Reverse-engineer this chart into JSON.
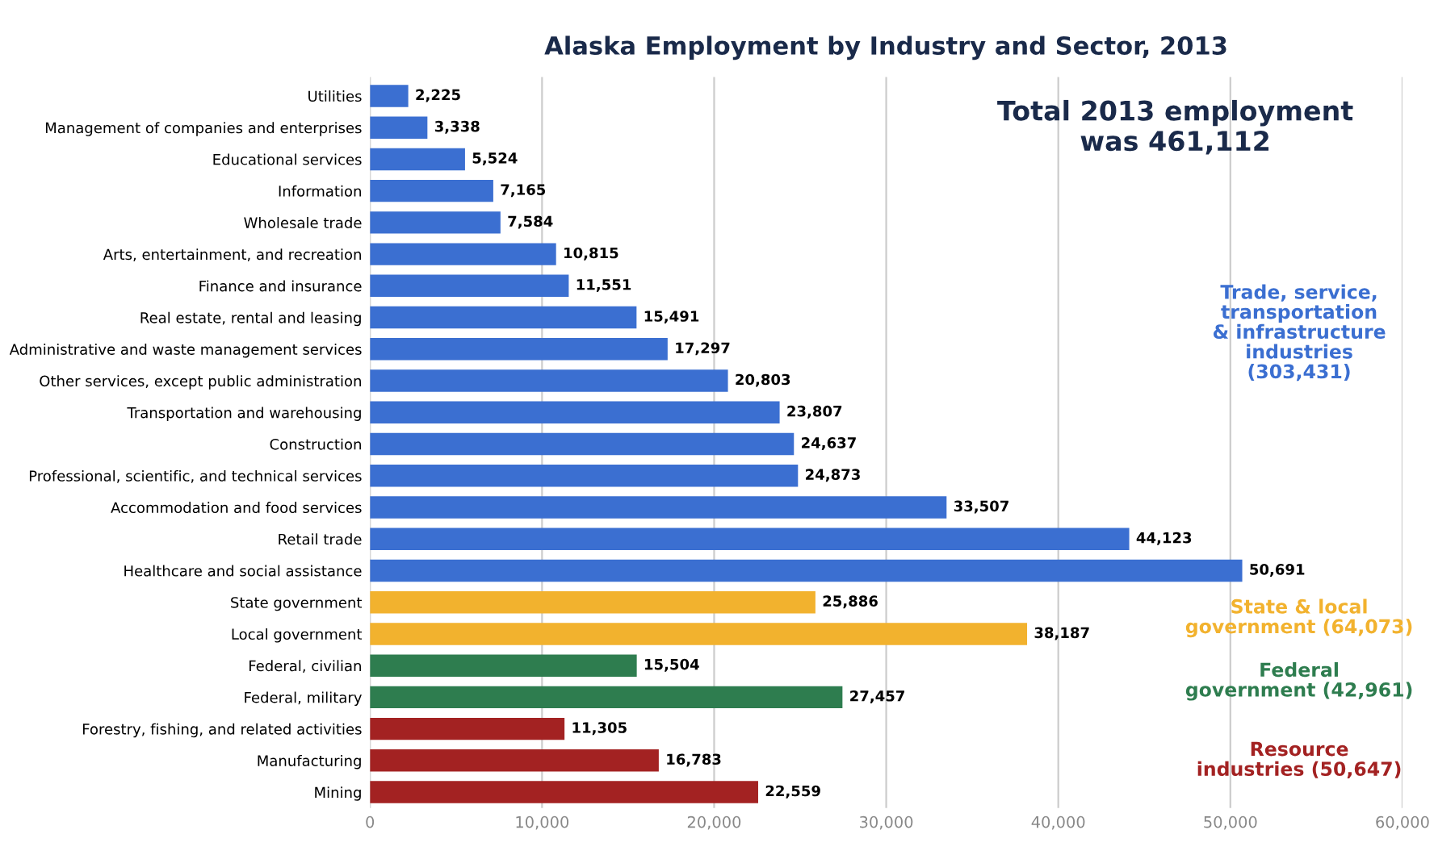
{
  "chart_data": {
    "type": "bar",
    "orientation": "horizontal",
    "title": "Alaska Employment by Industry and Sector, 2013",
    "categories": [
      "Utilities",
      "Management of companies and enterprises",
      "Educational services",
      "Information",
      "Wholesale trade",
      "Arts, entertainment, and recreation",
      "Finance and insurance",
      "Real estate, rental and leasing",
      "Administrative and waste management services",
      "Other services, except public administration",
      "Transportation and warehousing",
      "Construction",
      "Professional, scientific, and technical services",
      "Accommodation and food services",
      "Retail trade",
      "Healthcare and social assistance",
      "State government",
      "Local government",
      "Federal, civilian",
      "Federal, military",
      "Forestry, fishing, and related activities",
      "Manufacturing",
      "Mining"
    ],
    "series": [
      {
        "name": "Trade, service,\ntransportation\n& infrastructure\nindustries\n(303,431)",
        "color": "#3b6fd1",
        "values": [
          2225,
          3338,
          5524,
          7165,
          7584,
          10815,
          11551,
          15491,
          17297,
          20803,
          23807,
          24637,
          24873,
          33507,
          44123,
          50691,
          null,
          null,
          null,
          null,
          null,
          null,
          null
        ],
        "value_labels": [
          "2,225",
          "3,338",
          "5,524",
          "7,165",
          "7,584",
          "10,815",
          "11,551",
          "15,491",
          "17,297",
          "20,803",
          "23,807",
          "24,637",
          "24,873",
          "33,507",
          "44,123",
          "50,691",
          null,
          null,
          null,
          null,
          null,
          null,
          null
        ]
      },
      {
        "name": "State & local\ngovernment (64,073)",
        "color": "#f2b22e",
        "values": [
          null,
          null,
          null,
          null,
          null,
          null,
          null,
          null,
          null,
          null,
          null,
          null,
          null,
          null,
          null,
          null,
          25886,
          38187,
          null,
          null,
          null,
          null,
          null
        ],
        "value_labels": [
          null,
          null,
          null,
          null,
          null,
          null,
          null,
          null,
          null,
          null,
          null,
          null,
          null,
          null,
          null,
          null,
          "25,886",
          "38,187",
          null,
          null,
          null,
          null,
          null
        ]
      },
      {
        "name": "Federal\ngovernment (42,961)",
        "color": "#2e7d4f",
        "values": [
          null,
          null,
          null,
          null,
          null,
          null,
          null,
          null,
          null,
          null,
          null,
          null,
          null,
          null,
          null,
          null,
          null,
          null,
          15504,
          27457,
          null,
          null,
          null
        ],
        "value_labels": [
          null,
          null,
          null,
          null,
          null,
          null,
          null,
          null,
          null,
          null,
          null,
          null,
          null,
          null,
          null,
          null,
          null,
          null,
          "15,504",
          "27,457",
          null,
          null,
          null
        ]
      },
      {
        "name": "Resource\nindustries (50,647)",
        "color": "#a32222",
        "values": [
          null,
          null,
          null,
          null,
          null,
          null,
          null,
          null,
          null,
          null,
          null,
          null,
          null,
          null,
          null,
          null,
          null,
          null,
          null,
          null,
          11305,
          16783,
          22559
        ],
        "value_labels": [
          null,
          null,
          null,
          null,
          null,
          null,
          null,
          null,
          null,
          null,
          null,
          null,
          null,
          null,
          null,
          null,
          null,
          null,
          null,
          null,
          "11,305",
          "16,783",
          "22,559"
        ]
      }
    ],
    "xlim": [
      0,
      60000
    ],
    "xticks": [
      {
        "value": 0,
        "label": "0"
      },
      {
        "value": 10000,
        "label": "10,000"
      },
      {
        "value": 20000,
        "label": "20,000"
      },
      {
        "value": 30000,
        "label": "30,000"
      },
      {
        "value": 40000,
        "label": "40,000"
      },
      {
        "value": 50000,
        "label": "50,000"
      },
      {
        "value": 60000,
        "label": "60,000"
      }
    ],
    "grid": "x",
    "legend": false,
    "annotations": [
      "Total 2013 employment\nwas 461,112"
    ]
  }
}
